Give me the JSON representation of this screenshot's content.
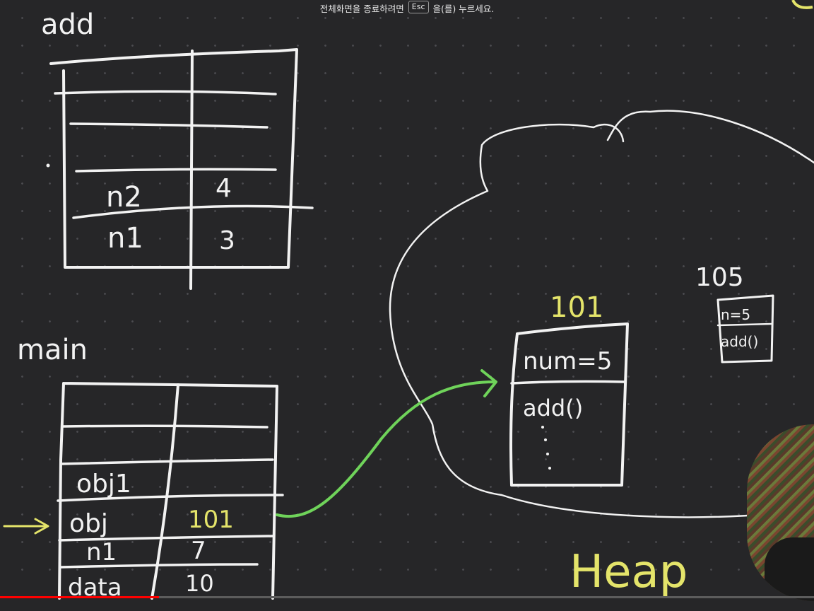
{
  "overlay": {
    "exit_before": "전체화면을 종료하려면",
    "exit_key": "Esc",
    "exit_after": "을(를) 누르세요.",
    "progress_fraction": 0.195
  },
  "stack": {
    "add_frame": {
      "title": "add",
      "rows": [
        {
          "name": "n2",
          "value": "4"
        },
        {
          "name": "n1",
          "value": "3"
        }
      ]
    },
    "main_frame": {
      "title": "main",
      "rows": [
        {
          "name": "obj1",
          "value": ""
        },
        {
          "name": "obj",
          "value": "101"
        },
        {
          "name": "n1",
          "value": "7"
        },
        {
          "name": "data",
          "value": "10"
        }
      ]
    }
  },
  "heap": {
    "label": "Heap",
    "objects": [
      {
        "address": "101",
        "fields": [
          "num=5",
          "add()"
        ]
      },
      {
        "address": "105",
        "fields": [
          "n=5",
          "add()"
        ]
      }
    ]
  },
  "colors": {
    "chalk": "#f2f2f2",
    "highlight": "#e4e46a",
    "pointer_arrow": "#6fd35a",
    "background": "#262628"
  }
}
